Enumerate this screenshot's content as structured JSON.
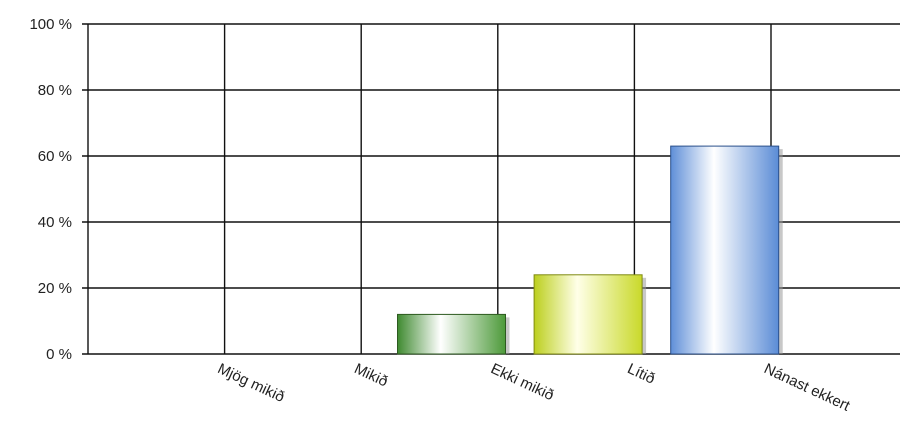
{
  "chart_data": {
    "type": "bar",
    "categories": [
      "Mjög mikið",
      "Mikið",
      "Ekki mikið",
      "Lítið",
      "Nánast ekkert"
    ],
    "values": [
      0,
      0,
      12,
      24,
      63
    ],
    "ylim": [
      0,
      100
    ],
    "yticks": [
      "0 %",
      "20 %",
      "40 %",
      "60 %",
      "80 %",
      "100 %"
    ],
    "grid": true,
    "colors": [
      "#6f8fd0",
      "#6f8fd0",
      "#4f8f3c",
      "#c8d630",
      "#6f9be0"
    ]
  }
}
